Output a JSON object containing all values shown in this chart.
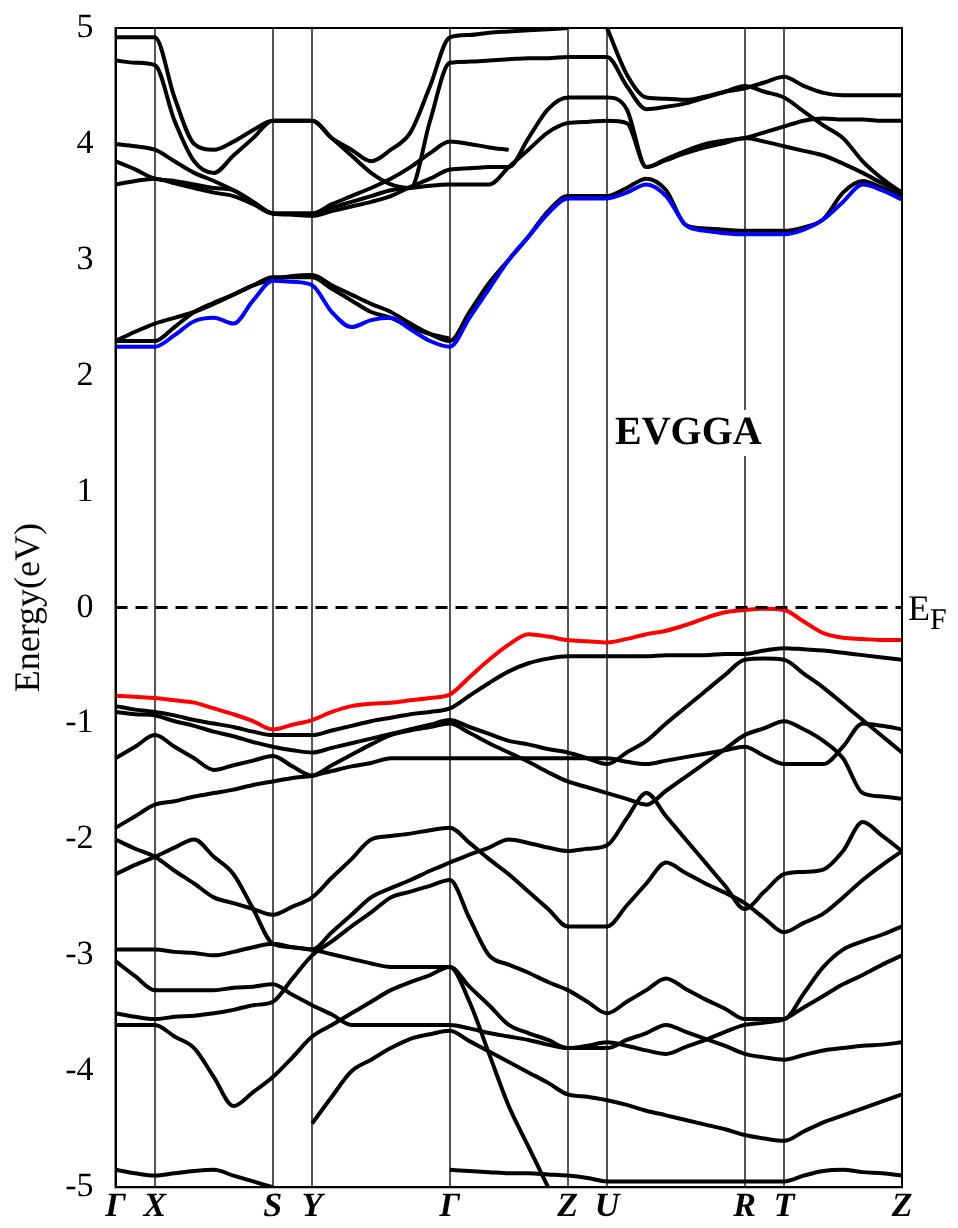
{
  "chart_data": {
    "type": "line",
    "ylabel": "Energy(eV)",
    "annotations": [
      "EVGGA"
    ],
    "categories": [
      "Γ",
      null,
      "X",
      null,
      null,
      null,
      null,
      null,
      "S",
      null,
      "Y",
      null,
      null,
      null,
      null,
      null,
      null,
      "Γ",
      null,
      null,
      null,
      null,
      null,
      "Z",
      null,
      "U",
      null,
      null,
      null,
      null,
      null,
      null,
      "R",
      null,
      "T",
      null,
      null,
      null,
      null,
      null,
      "Z"
    ],
    "ylim": [
      -5,
      5
    ],
    "yticks": [
      -5,
      -4,
      -3,
      -2,
      -1,
      0,
      1,
      2,
      3,
      4,
      5
    ],
    "grid": "x",
    "legend": false,
    "marker": "none",
    "line_style": "solid",
    "ref_lines": [
      {
        "axis": "y",
        "value": 0,
        "label": "E$_{F}$",
        "color": "#000000",
        "line_style": "dashed"
      }
    ],
    "series": [
      {
        "color": "#ff0000",
        "values": [
          -0.76,
          -0.77,
          -0.78,
          -0.8,
          -0.82,
          -0.87,
          -0.92,
          -0.98,
          -1.05,
          -1.01,
          -0.97,
          -0.9,
          -0.85,
          -0.83,
          -0.82,
          -0.8,
          -0.78,
          -0.75,
          -0.6,
          -0.45,
          -0.32,
          -0.23,
          -0.25,
          -0.28,
          -0.29,
          -0.3,
          -0.27,
          -0.23,
          -0.2,
          -0.15,
          -0.09,
          -0.04,
          -0.02,
          -0.01,
          -0.02,
          -0.12,
          -0.22,
          -0.26,
          -0.27,
          -0.28,
          -0.28
        ]
      },
      {
        "color": "#0000ff",
        "values": [
          2.25,
          2.25,
          2.25,
          2.35,
          2.47,
          2.5,
          2.45,
          2.65,
          2.82,
          2.81,
          2.78,
          2.55,
          2.42,
          2.48,
          2.5,
          2.4,
          2.3,
          2.25,
          2.5,
          2.75,
          3.0,
          3.2,
          3.4,
          3.53,
          3.53,
          3.53,
          3.58,
          3.65,
          3.55,
          3.3,
          3.25,
          3.23,
          3.22,
          3.22,
          3.22,
          3.26,
          3.35,
          3.5,
          3.65,
          3.6,
          3.52
        ]
      },
      {
        "color": "#000000",
        "values": [
          2.3,
          2.3,
          2.3,
          2.42,
          2.55,
          2.63,
          2.7,
          2.78,
          2.83,
          2.86,
          2.87,
          2.78,
          2.7,
          2.62,
          2.55,
          2.45,
          2.36,
          2.3,
          2.55,
          2.8,
          3.0,
          3.2,
          3.42,
          3.55,
          3.55,
          3.55,
          3.62,
          3.7,
          3.6,
          3.3,
          3.27,
          3.26,
          3.25,
          3.25,
          3.25,
          3.28,
          3.35,
          3.58,
          3.68,
          3.62,
          3.55
        ]
      },
      {
        "color": "#000000",
        "values": [
          2.3,
          2.38,
          2.45,
          2.5,
          2.55,
          2.62,
          2.7,
          2.78,
          2.85,
          2.85,
          2.85,
          2.75,
          2.65,
          2.55,
          2.5,
          2.42,
          2.36,
          2.32,
          null,
          null,
          null,
          null,
          null,
          null,
          null,
          null,
          null,
          null,
          null,
          null,
          null,
          null,
          null,
          null,
          null,
          null,
          null,
          null,
          null,
          null,
          null
        ]
      },
      {
        "color": "#000000",
        "values": [
          3.65,
          3.68,
          3.7,
          3.66,
          3.62,
          3.58,
          3.55,
          3.48,
          3.4,
          3.4,
          3.4,
          3.45,
          3.5,
          3.55,
          3.6,
          3.62,
          3.64,
          3.65,
          3.65,
          3.65,
          3.8,
          3.95,
          4.1,
          4.18,
          4.19,
          4.2,
          4.18,
          3.8,
          3.87,
          3.94,
          4.0,
          4.03,
          4.05,
          4.1,
          4.15,
          4.2,
          4.22,
          4.21,
          4.21,
          4.2,
          4.2
        ]
      },
      {
        "color": "#000000",
        "values": [
          3.85,
          3.78,
          3.7,
          3.68,
          3.65,
          3.62,
          3.6,
          3.5,
          3.4,
          3.39,
          3.38,
          3.42,
          3.46,
          3.5,
          3.55,
          3.63,
          3.7,
          3.78,
          3.79,
          3.8,
          3.8,
          4.05,
          4.3,
          4.4,
          4.4,
          4.4,
          4.3,
          3.8,
          3.86,
          3.92,
          3.97,
          4.01,
          4.05,
          4.02,
          3.98,
          3.94,
          3.9,
          3.83,
          3.75,
          3.66,
          3.58
        ]
      },
      {
        "color": "#000000",
        "values": [
          4.0,
          3.98,
          3.95,
          3.85,
          3.75,
          3.68,
          3.6,
          3.5,
          3.4,
          3.4,
          3.4,
          3.48,
          3.55,
          3.62,
          3.7,
          3.8,
          3.92,
          4.02,
          4.0,
          3.97,
          3.95,
          null,
          null,
          null,
          null,
          null,
          null,
          null,
          null,
          null,
          null,
          null,
          null,
          null,
          null,
          null,
          null,
          null,
          null,
          null,
          null
        ]
      },
      {
        "color": "#000000",
        "values": [
          4.92,
          4.92,
          4.92,
          4.4,
          4.0,
          3.95,
          4.02,
          4.12,
          4.2,
          4.2,
          4.2,
          4.05,
          3.95,
          3.85,
          3.95,
          4.1,
          4.5,
          4.92,
          4.94,
          4.96,
          4.97,
          4.98,
          4.99,
          5.0,
          null,
          null,
          null,
          null,
          null,
          null,
          null,
          null,
          null,
          null,
          null,
          null,
          null,
          null,
          null,
          null,
          null
        ]
      },
      {
        "color": "#000000",
        "values": [
          4.72,
          4.7,
          4.68,
          4.2,
          3.85,
          3.75,
          3.9,
          4.05,
          4.2,
          4.2,
          4.2,
          4.05,
          3.9,
          3.75,
          3.65,
          3.62,
          4.2,
          4.7,
          4.71,
          4.72,
          4.73,
          4.74,
          4.74,
          4.75,
          4.75,
          4.75,
          4.5,
          4.3,
          4.32,
          4.35,
          4.4,
          4.45,
          4.5,
          4.45,
          4.4,
          4.28,
          4.16,
          4.05,
          3.85,
          3.7,
          3.58
        ]
      },
      {
        "color": "#000000",
        "values": [
          null,
          null,
          null,
          null,
          null,
          null,
          null,
          null,
          null,
          null,
          null,
          null,
          null,
          null,
          null,
          null,
          null,
          null,
          null,
          null,
          null,
          null,
          null,
          null,
          null,
          5.0,
          4.6,
          4.4,
          4.39,
          4.38,
          4.41,
          4.45,
          4.48,
          4.53,
          4.58,
          4.5,
          4.44,
          4.42,
          4.42,
          4.42,
          4.42
        ]
      },
      {
        "color": "#000000",
        "values": [
          -0.85,
          -0.88,
          -0.9,
          -0.93,
          -0.97,
          -1.0,
          -1.03,
          -1.07,
          -1.1,
          -1.1,
          -1.1,
          -1.06,
          -1.02,
          -0.98,
          -0.95,
          -0.92,
          -0.9,
          -0.87,
          -0.76,
          -0.65,
          -0.55,
          -0.48,
          -0.44,
          -0.42,
          -0.42,
          -0.42,
          -0.42,
          -0.42,
          -0.41,
          -0.41,
          -0.41,
          -0.4,
          -0.4,
          -0.37,
          -0.35,
          -0.36,
          -0.37,
          -0.39,
          -0.41,
          -0.43,
          -0.45
        ]
      },
      {
        "color": "#000000",
        "values": [
          -0.9,
          -0.92,
          -0.93,
          -0.98,
          -1.02,
          -1.07,
          -1.11,
          -1.16,
          -1.2,
          -1.23,
          -1.25,
          -1.21,
          -1.17,
          -1.13,
          -1.09,
          -1.05,
          -1.01,
          -0.97,
          -1.03,
          -1.09,
          -1.15,
          -1.18,
          -1.22,
          -1.25,
          -1.3,
          -1.35,
          -1.25,
          -1.15,
          -1.0,
          -0.86,
          -0.72,
          -0.58,
          -0.45,
          -0.44,
          -0.45,
          -0.57,
          -0.69,
          -0.83,
          -0.97,
          -1.11,
          -1.25
        ]
      },
      {
        "color": "#000000",
        "values": [
          -1.3,
          -1.2,
          -1.1,
          -1.2,
          -1.3,
          -1.4,
          -1.36,
          -1.32,
          -1.28,
          -1.37,
          -1.45,
          -1.36,
          -1.27,
          -1.18,
          -1.1,
          -1.06,
          -1.03,
          -1.0,
          -1.08,
          -1.17,
          -1.25,
          -1.33,
          -1.42,
          -1.5,
          -1.55,
          -1.6,
          -1.65,
          -1.7,
          -1.58,
          -1.46,
          -1.34,
          -1.22,
          -1.1,
          -1.04,
          -0.98,
          -1.05,
          -1.15,
          -1.3,
          -1.6,
          -1.63,
          -1.65
        ]
      },
      {
        "color": "#000000",
        "values": [
          -1.9,
          -1.8,
          -1.7,
          -1.67,
          -1.63,
          -1.6,
          -1.57,
          -1.53,
          -1.5,
          -1.47,
          -1.45,
          -1.41,
          -1.37,
          -1.34,
          -1.3,
          -1.3,
          -1.3,
          -1.3,
          -1.3,
          -1.3,
          -1.3,
          -1.3,
          -1.3,
          -1.3,
          -1.3,
          -1.3,
          -1.33,
          -1.35,
          -1.32,
          -1.29,
          -1.26,
          -1.23,
          -1.2,
          -1.28,
          -1.35,
          -1.35,
          -1.35,
          -1.2,
          -1.0,
          -1.02,
          -1.05
        ]
      },
      {
        "color": "#000000",
        "values": [
          -2.0,
          -2.08,
          -2.15,
          -2.27,
          -2.38,
          -2.5,
          -2.55,
          -2.6,
          -2.65,
          -2.58,
          -2.5,
          -2.33,
          -2.17,
          -2.0,
          -1.97,
          -1.95,
          -1.92,
          -1.9,
          -2.03,
          -2.17,
          -2.3,
          -2.45,
          -2.6,
          -2.75,
          -2.75,
          -2.75,
          -2.57,
          -2.38,
          -2.2,
          -2.29,
          -2.38,
          -2.46,
          -2.55,
          -2.68,
          -2.8,
          -2.72,
          -2.64,
          -2.5,
          -2.35,
          -2.22,
          -2.1
        ]
      },
      {
        "color": "#000000",
        "values": [
          -2.3,
          -2.22,
          -2.15,
          -2.07,
          -2.0,
          -2.15,
          -2.3,
          -2.6,
          -2.9,
          -2.93,
          -2.95,
          -2.8,
          -2.65,
          -2.5,
          -2.42,
          -2.35,
          -2.27,
          -2.2,
          -2.13,
          -2.07,
          -2.0,
          -2.03,
          -2.07,
          -2.1,
          -2.08,
          -2.05,
          -1.82,
          -1.6,
          -1.8,
          -2.0,
          -2.2,
          -2.4,
          -2.6,
          -2.45,
          -2.3,
          -2.28,
          -2.26,
          -2.1,
          -1.85,
          -1.97,
          -2.1
        ]
      },
      {
        "color": "#000000",
        "values": [
          -2.95,
          -2.95,
          -2.95,
          -2.97,
          -2.98,
          -3.0,
          -2.97,
          -2.93,
          -2.9,
          -2.93,
          -2.95,
          -2.99,
          -3.03,
          -3.07,
          -3.1,
          -3.1,
          -3.1,
          -3.1,
          -3.27,
          -3.43,
          -3.6,
          -3.67,
          -3.73,
          -3.8,
          -3.78,
          -3.75,
          -3.78,
          -3.82,
          -3.85,
          -3.79,
          -3.73,
          -3.66,
          -3.6,
          -3.58,
          -3.55,
          -3.45,
          -3.35,
          -3.25,
          -3.17,
          -3.08,
          -3.0
        ]
      },
      {
        "color": "#000000",
        "values": [
          -3.05,
          -3.18,
          -3.3,
          -3.3,
          -3.3,
          -3.3,
          -3.28,
          -3.27,
          -3.25,
          -3.34,
          -3.43,
          -3.51,
          -3.6,
          -3.6,
          -3.6,
          -3.6,
          -3.6,
          -3.6,
          -3.63,
          -3.67,
          -3.7,
          -3.73,
          -3.77,
          -3.8,
          -3.8,
          -3.8,
          -3.73,
          -3.67,
          -3.6,
          -3.66,
          -3.72,
          -3.78,
          -3.85,
          -3.88,
          -3.9,
          -3.86,
          -3.82,
          -3.8,
          -3.78,
          -3.77,
          -3.75
        ]
      },
      {
        "color": "#000000",
        "values": [
          -3.5,
          -3.53,
          -3.55,
          -3.53,
          -3.52,
          -3.5,
          -3.47,
          -3.43,
          -3.4,
          -3.2,
          -3.0,
          -2.88,
          -2.75,
          -2.63,
          -2.5,
          -2.45,
          -2.4,
          -2.35,
          -2.68,
          -3.0,
          -3.08,
          -3.15,
          -3.23,
          -3.3,
          -3.4,
          -3.5,
          -3.4,
          -3.3,
          -3.2,
          -3.29,
          -3.38,
          -3.46,
          -3.55,
          -3.55,
          -3.55,
          -3.33,
          -3.1,
          -2.95,
          -2.88,
          -2.82,
          -2.75
        ]
      },
      {
        "color": "#000000",
        "values": [
          -3.6,
          -3.6,
          -3.6,
          -3.7,
          -3.8,
          -4.05,
          -4.3,
          -4.18,
          -4.05,
          -3.88,
          -3.7,
          -3.6,
          -3.5,
          -3.4,
          -3.3,
          -3.23,
          -3.17,
          -3.1,
          -3.4,
          -3.85,
          -4.3,
          -4.65,
          -5.0,
          null,
          null,
          null,
          null,
          null,
          null,
          null,
          null,
          null,
          null,
          null,
          null,
          null,
          null,
          null,
          null,
          null,
          null
        ]
      },
      {
        "color": "#000000",
        "values": [
          null,
          null,
          null,
          null,
          null,
          null,
          null,
          null,
          null,
          null,
          -4.45,
          -4.22,
          -4.0,
          -3.9,
          -3.8,
          -3.72,
          -3.68,
          -3.65,
          -3.74,
          -3.83,
          -3.92,
          -4.01,
          -4.1,
          -4.2,
          -4.22,
          -4.25,
          -4.29,
          -4.34,
          -4.38,
          -4.42,
          -4.46,
          -4.5,
          -4.55,
          -4.58,
          -4.6,
          -4.52,
          -4.44,
          -4.38,
          -4.32,
          -4.26,
          -4.2
        ]
      },
      {
        "color": "#000000",
        "values": [
          -4.85,
          -4.88,
          -4.9,
          -4.88,
          -4.86,
          -4.85,
          -4.9,
          -4.95,
          -5.0,
          null,
          null,
          null,
          null,
          null,
          null,
          null,
          null,
          null,
          null,
          null,
          null,
          null,
          null,
          null,
          null,
          null,
          null,
          null,
          null,
          null,
          null,
          null,
          null,
          null,
          null,
          null,
          null,
          null,
          null,
          null,
          null
        ]
      },
      {
        "color": "#000000",
        "values": [
          null,
          null,
          null,
          null,
          null,
          null,
          null,
          null,
          null,
          null,
          null,
          null,
          null,
          null,
          null,
          null,
          null,
          -4.85,
          -4.86,
          -4.87,
          -4.88,
          -4.88,
          -4.89,
          -4.9,
          -4.92,
          -4.95,
          -4.95,
          -4.95,
          -4.95,
          -4.95,
          -4.95,
          -4.95,
          -4.95,
          -4.95,
          -4.95,
          -4.9,
          -4.86,
          -4.85,
          -4.87,
          -4.88,
          -4.9
        ]
      }
    ]
  }
}
